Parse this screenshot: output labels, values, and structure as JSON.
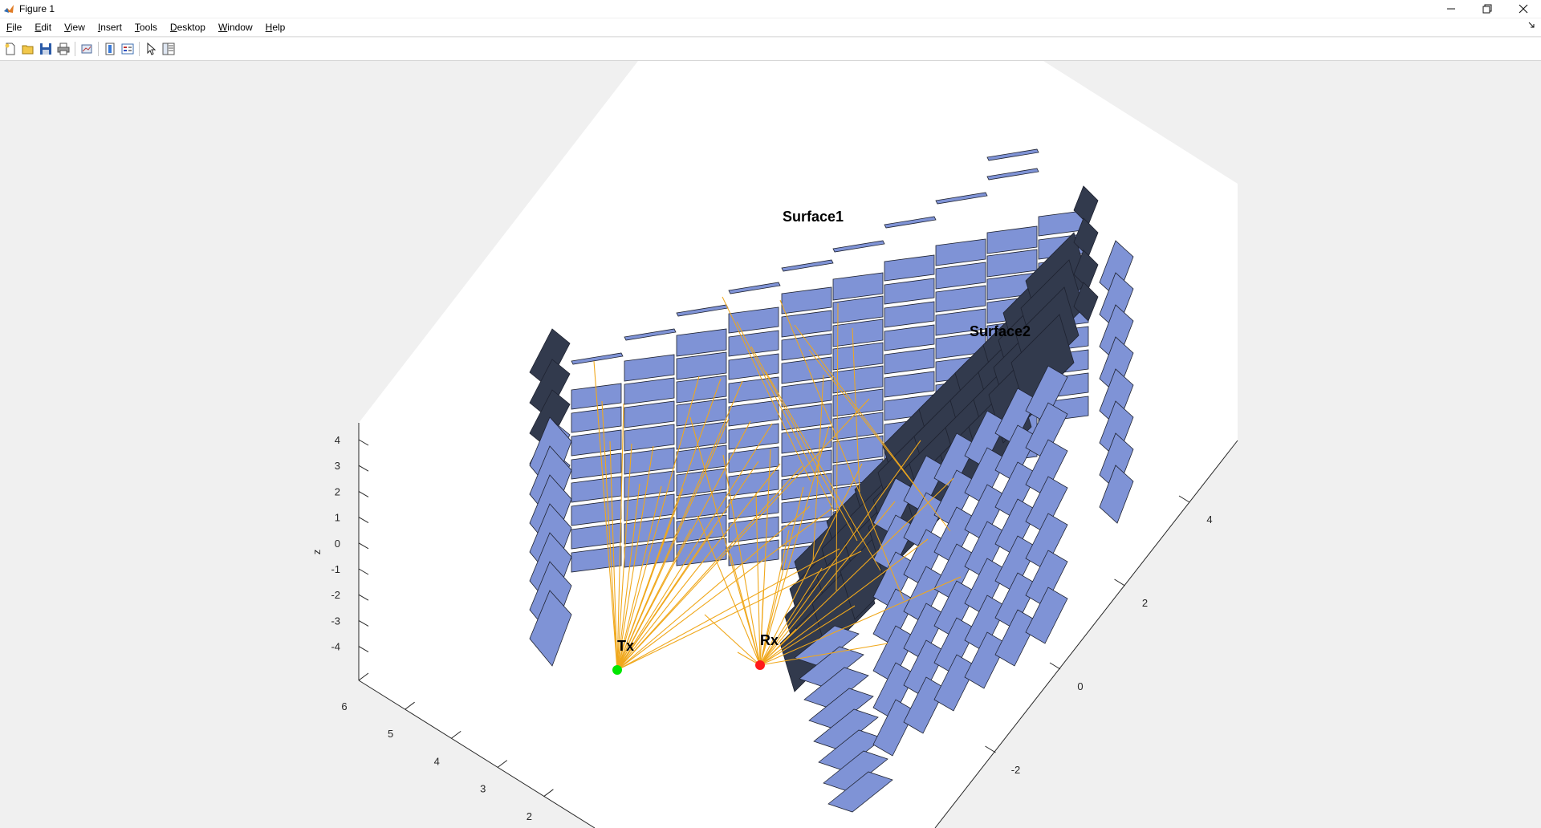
{
  "window": {
    "title": "Figure 1"
  },
  "menu": [
    {
      "key": "F",
      "rest": "ile"
    },
    {
      "key": "E",
      "rest": "dit"
    },
    {
      "key": "V",
      "rest": "iew"
    },
    {
      "key": "I",
      "rest": "nsert"
    },
    {
      "key": "T",
      "rest": "ools"
    },
    {
      "key": "D",
      "rest": "esktop"
    },
    {
      "key": "W",
      "rest": "indow"
    },
    {
      "key": "H",
      "rest": "elp"
    }
  ],
  "toolbar": [
    "new-figure-icon",
    "open-file-icon",
    "save-icon",
    "print-icon",
    "link-plot-icon",
    "colorbar-icon",
    "legend-icon",
    "pointer-icon",
    "property-inspector-icon"
  ],
  "plot": {
    "labels": {
      "surface1": "Surface1",
      "surface2": "Surface2",
      "tx": "Tx",
      "rx": "Rx"
    },
    "z_axis": {
      "label": "z",
      "ticks": [
        "4",
        "3",
        "2",
        "1",
        "0",
        "-1",
        "-2",
        "-3",
        "-4"
      ]
    },
    "x_axis": {
      "ticks": [
        "6",
        "5",
        "4",
        "3",
        "2"
      ]
    },
    "y_axis": {
      "ticks": [
        "4",
        "2",
        "0",
        "-2"
      ]
    },
    "colors": {
      "panel_light": "#7f93d6",
      "panel_dark": "#323a4d",
      "ray": "#f0a81c",
      "tx": "#00e600",
      "rx": "#ff1a1a"
    }
  }
}
